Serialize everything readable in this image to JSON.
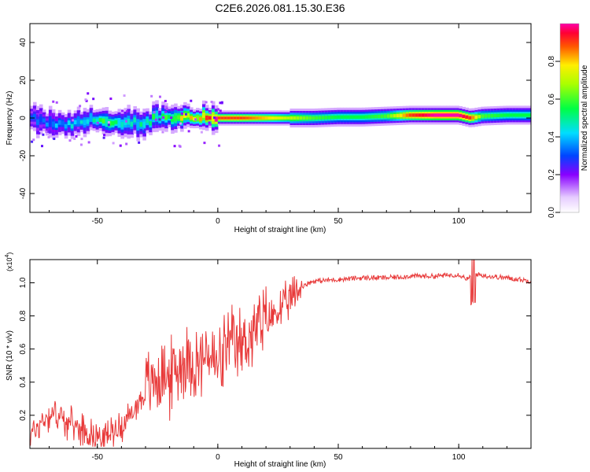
{
  "title": "C2E6.2026.081.15.30.E36",
  "chart_data": [
    {
      "type": "heatmap",
      "xlabel": "Height of straight line (km)",
      "ylabel": "Frequency (Hz)",
      "xlim": [
        -78,
        130
      ],
      "ylim": [
        -50,
        50
      ],
      "xticks": [
        -50,
        0,
        50,
        100
      ],
      "yticks": [
        40,
        20,
        0,
        -20,
        -40
      ],
      "colorbar": {
        "label": "Normalized spectral amplitude",
        "range": [
          0,
          1
        ],
        "ticks": [
          "0.0",
          "0.2",
          "0.4",
          "0.6",
          "0.8"
        ]
      },
      "ridge": {
        "height_km": [
          -78,
          -70,
          -62,
          -55,
          -50,
          -45,
          -40,
          -35,
          -30,
          -25,
          -20,
          -15,
          -10,
          -5,
          0,
          10,
          20,
          30,
          40,
          50,
          60,
          70,
          80,
          90,
          100,
          105,
          110,
          120,
          130
        ],
        "frequency_hz": [
          0,
          -3,
          -4,
          -2,
          0,
          -3,
          -4,
          -2,
          -3,
          1,
          0,
          1,
          0,
          1,
          0,
          0,
          0,
          0,
          0,
          0.5,
          0.5,
          1,
          1.5,
          1.5,
          1.5,
          0,
          1,
          1.5,
          1.5
        ],
        "amplitude": [
          0.3,
          0.35,
          0.4,
          0.45,
          0.5,
          0.6,
          0.5,
          0.45,
          0.5,
          0.5,
          0.55,
          0.7,
          0.75,
          0.8,
          0.9,
          0.9,
          0.8,
          0.7,
          0.6,
          0.55,
          0.55,
          0.6,
          0.9,
          1.0,
          1.0,
          0.9,
          0.6,
          0.55,
          0.55
        ]
      }
    },
    {
      "type": "line",
      "xlabel": "Height of straight line (km)",
      "ylabel": "SNR (10 * v/v)",
      "scale_label": "(x10",
      "scale_exp": "4",
      "scale_close": ")",
      "xlim": [
        -78,
        130
      ],
      "ylim": [
        0,
        1.14
      ],
      "xticks": [
        -50,
        0,
        50,
        100
      ],
      "yticks": [
        "0.2",
        "0.4",
        "0.6",
        "0.8",
        "1.0"
      ],
      "series": [
        {
          "name": "SNR",
          "color": "#e83a3a",
          "x": [
            -78,
            -72,
            -68,
            -62,
            -56,
            -52,
            -48,
            -44,
            -40,
            -36,
            -32,
            -28,
            -24,
            -20,
            -16,
            -12,
            -8,
            -4,
            0,
            4,
            8,
            12,
            16,
            20,
            24,
            28,
            32,
            36,
            40,
            50,
            60,
            70,
            80,
            90,
            100,
            104,
            106,
            108,
            112,
            120,
            130
          ],
          "y": [
            0.08,
            0.18,
            0.22,
            0.15,
            0.12,
            0.08,
            0.06,
            0.1,
            0.14,
            0.2,
            0.3,
            0.38,
            0.45,
            0.42,
            0.5,
            0.55,
            0.5,
            0.58,
            0.48,
            0.62,
            0.6,
            0.66,
            0.72,
            0.76,
            0.82,
            0.86,
            0.93,
            0.99,
            1.01,
            1.02,
            1.03,
            1.03,
            1.04,
            1.04,
            1.05,
            1.02,
            1.06,
            1.05,
            1.04,
            1.03,
            1.01
          ]
        }
      ]
    }
  ]
}
